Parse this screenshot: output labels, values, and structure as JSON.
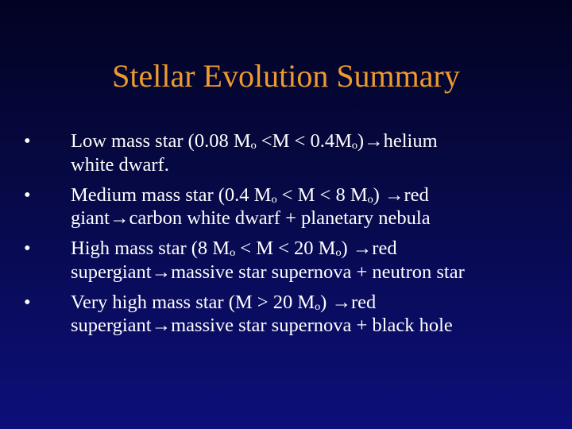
{
  "slide": {
    "title": "Stellar Evolution Summary",
    "bullet_symbol": "•",
    "bullets": [
      {
        "lines": [
          "Low mass star (0.08 Mₒ <M < 0.4Mₒ)→helium",
          "white dwarf."
        ]
      },
      {
        "lines": [
          "Medium mass star (0.4 Mₒ < M < 8 Mₒ) →red",
          "giant→carbon white dwarf + planetary nebula"
        ]
      },
      {
        "lines": [
          "High mass star (8 Mₒ < M < 20 Mₒ) →red",
          "supergiant→massive star supernova + neutron star"
        ]
      },
      {
        "lines": [
          "Very high mass star (M > 20 Mₒ) →red",
          "supergiant→massive star supernova + black hole"
        ]
      }
    ]
  },
  "colors": {
    "background_top": "#020322",
    "background_bottom": "#0d0f7a",
    "title": "#ee9a2e",
    "text": "#ffffff"
  }
}
